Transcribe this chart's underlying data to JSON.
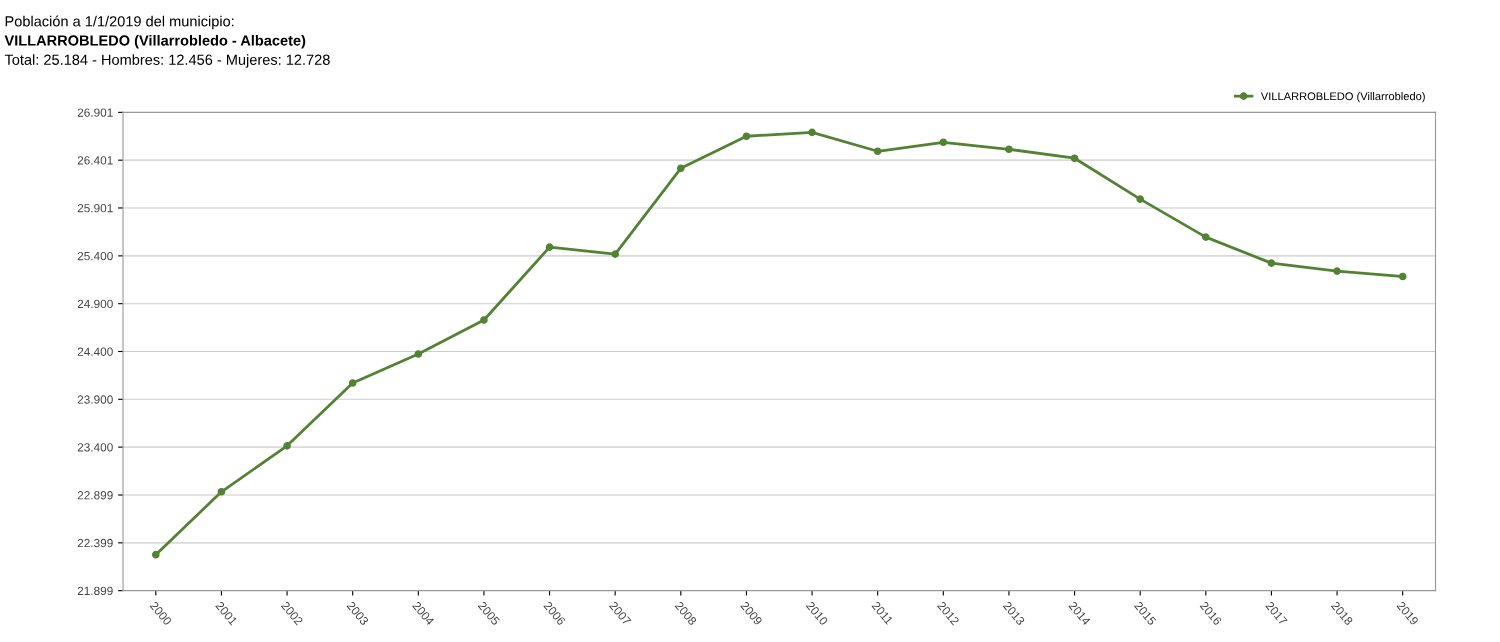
{
  "chart_data": {
    "type": "line",
    "title": "Población a 1/1/2019 del municipio:",
    "subtitle": "VILLARROBLEDO (Villarrobledo - Albacete)",
    "annotations": [
      "Total: 25.184 - Hombres: 12.456 - Mujeres: 12.728"
    ],
    "categories": [
      "2000",
      "2001",
      "2002",
      "2003",
      "2004",
      "2005",
      "2006",
      "2007",
      "2008",
      "2009",
      "2010",
      "2011",
      "2012",
      "2013",
      "2014",
      "2015",
      "2016",
      "2017",
      "2018",
      "2019"
    ],
    "series": [
      {
        "name": "VILLARROBLEDO (Villarrobledo)",
        "color": "#548235",
        "values": [
          22275,
          22933,
          23413,
          24071,
          24374,
          24729,
          25491,
          25418,
          26316,
          26651,
          26692,
          26494,
          26588,
          26515,
          26421,
          25993,
          25596,
          25324,
          25241,
          25184
        ]
      }
    ],
    "ylim": [
      21899,
      26901
    ],
    "yticks": [
      {
        "value": 21899,
        "label": "21.899"
      },
      {
        "value": 22399,
        "label": "22.399"
      },
      {
        "value": 22899,
        "label": "22.899"
      },
      {
        "value": 23400,
        "label": "23.400"
      },
      {
        "value": 23900,
        "label": "23.900"
      },
      {
        "value": 24400,
        "label": "24.400"
      },
      {
        "value": 24900,
        "label": "24.900"
      },
      {
        "value": 25400,
        "label": "25.400"
      },
      {
        "value": 25901,
        "label": "25.901"
      },
      {
        "value": 26401,
        "label": "26.401"
      },
      {
        "value": 26901,
        "label": "26.901"
      }
    ],
    "grid": "y",
    "legend": "top right",
    "marker": "circle",
    "line_style": "solid"
  }
}
